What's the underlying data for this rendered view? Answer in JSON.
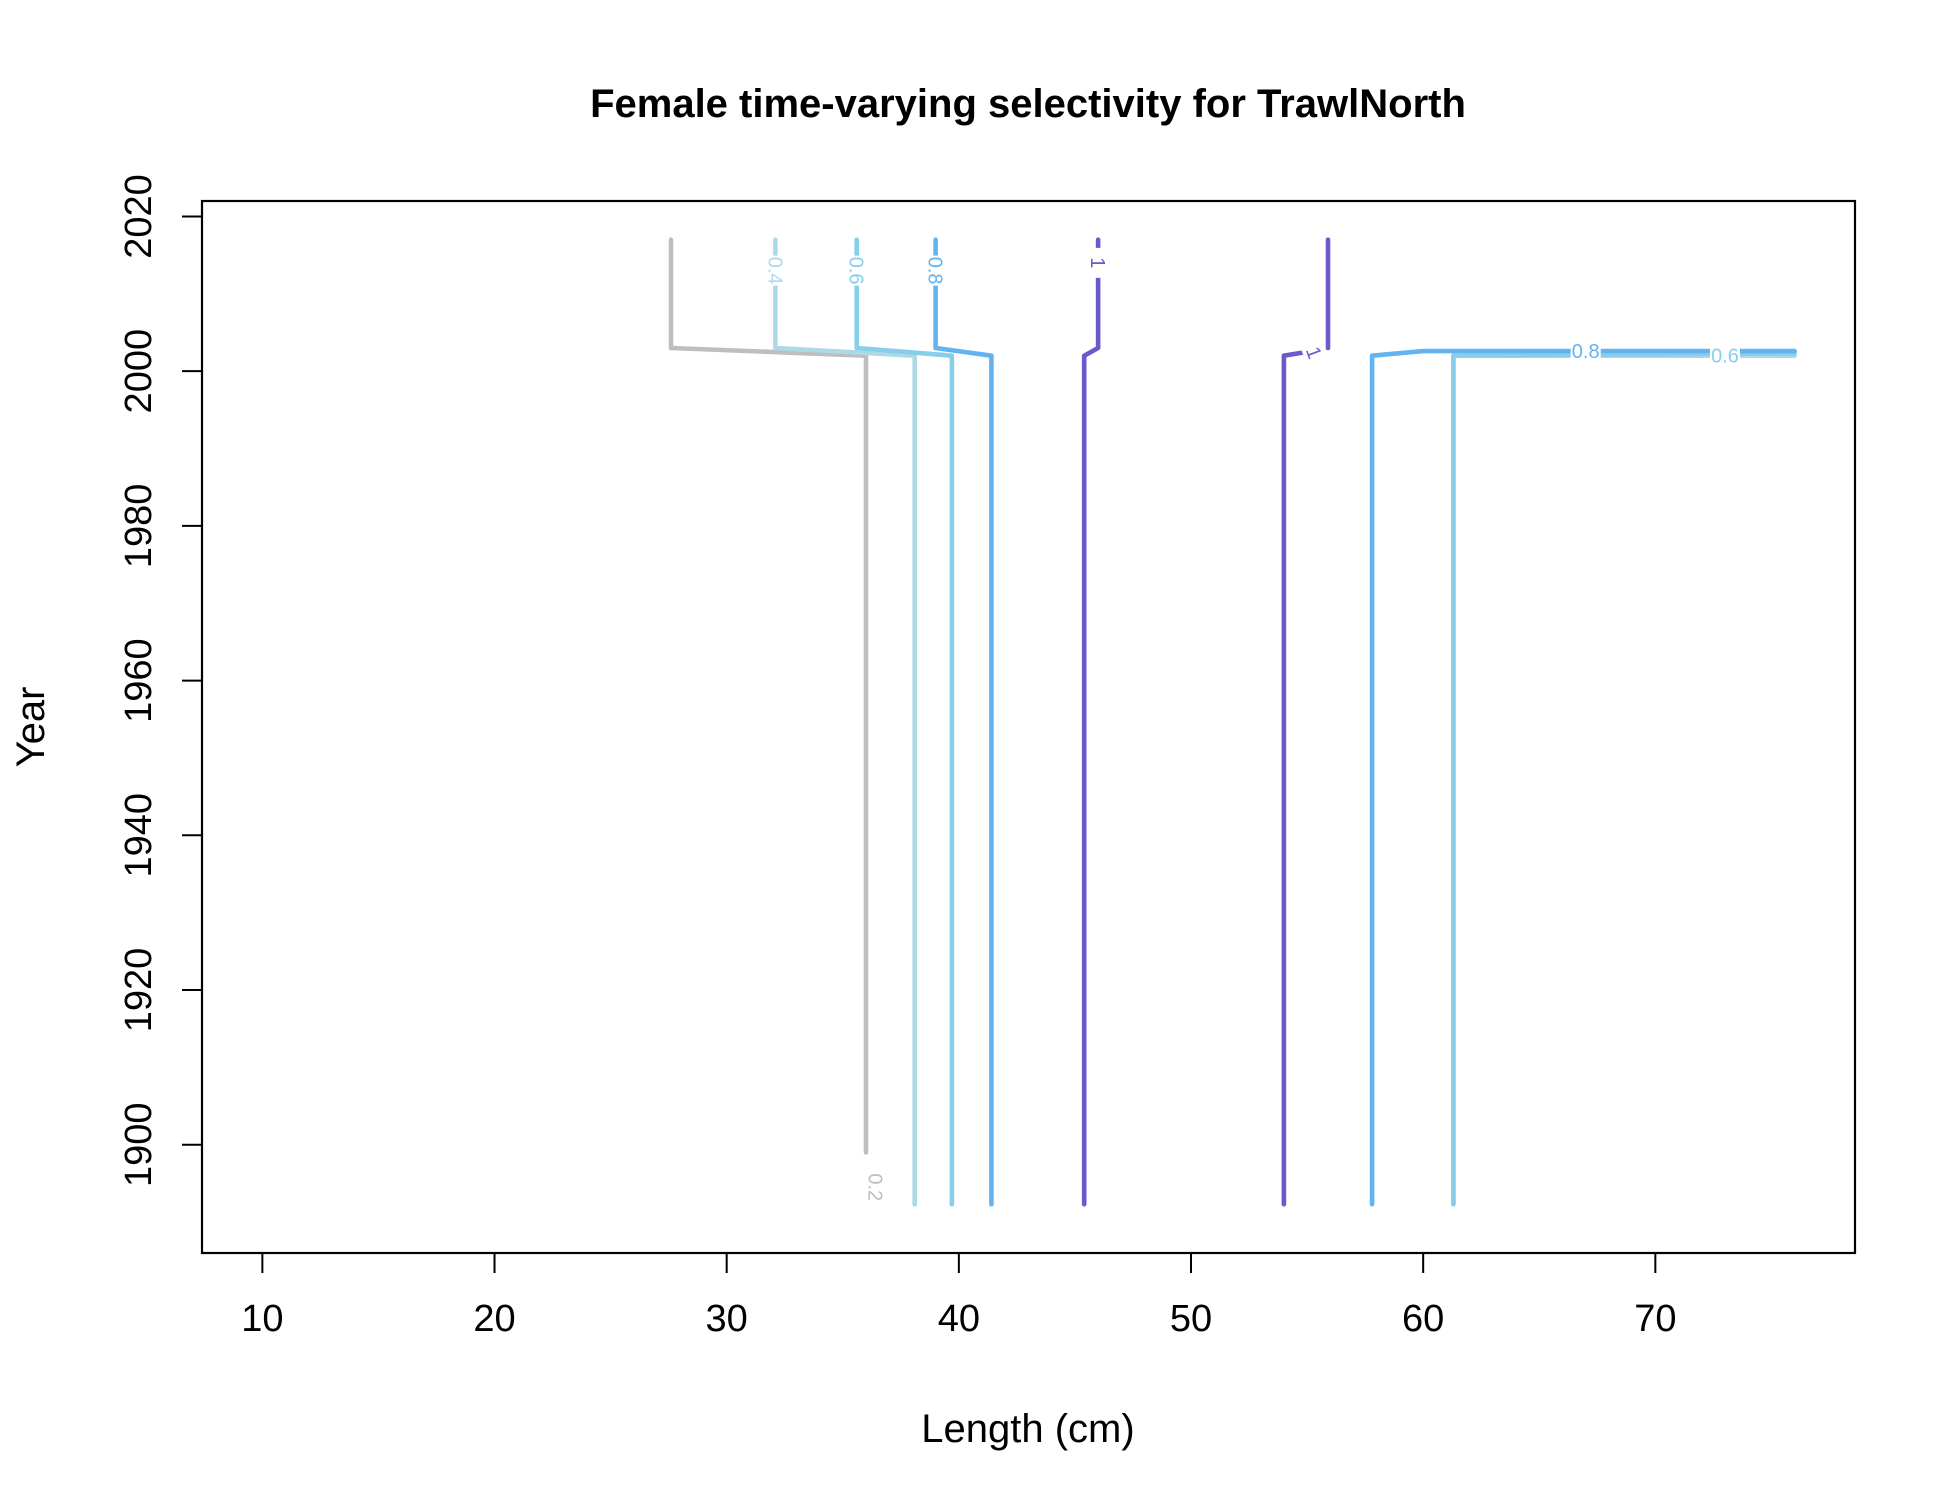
{
  "chart_data": {
    "type": "line",
    "title": "Female time-varying selectivity for TrawlNorth",
    "xlabel": "Length (cm)",
    "ylabel": "Year",
    "xlim": [
      7.4,
      78.6
    ],
    "ylim": [
      1886,
      2022
    ],
    "xticks": [
      10,
      20,
      30,
      40,
      50,
      60,
      70
    ],
    "yticks": [
      1900,
      1920,
      1940,
      1960,
      1980,
      2000,
      2020
    ],
    "grid": false,
    "legend": "none",
    "series": [
      {
        "level": 0.2,
        "label": "0.2",
        "color": "#bebebe",
        "paths": [
          [
            [
              27.6,
              2017
            ],
            [
              27.6,
              2003
            ],
            [
              36.0,
              2002
            ],
            [
              36.0,
              1899
            ]
          ]
        ],
        "label_at": [
          36.4,
          1894.5,
          90
        ]
      },
      {
        "level": 0.4,
        "label": "0.4",
        "color": "#add8e6",
        "paths": [
          [
            [
              32.1,
              2017
            ],
            [
              32.1,
              2003
            ],
            [
              38.1,
              2002
            ],
            [
              38.1,
              1892.3
            ]
          ],
          [
            [
              61.3,
              1892.3
            ],
            [
              61.3,
              2002
            ],
            [
              76.0,
              2002
            ]
          ]
        ],
        "label_at": [
          32.1,
          2013,
          90
        ]
      },
      {
        "level": 0.6,
        "label": "0.6",
        "color": "#87ceeb",
        "paths": [
          [
            [
              35.6,
              2017
            ],
            [
              35.6,
              2003
            ],
            [
              39.7,
              2002
            ],
            [
              39.7,
              1892.3
            ]
          ],
          [
            [
              61.3,
              1892.3
            ],
            [
              61.3,
              2002
            ],
            [
              76.0,
              2002.3
            ]
          ]
        ],
        "label_at": [
          35.6,
          2013,
          90
        ],
        "extra_label_at": [
          73.0,
          2002,
          0
        ]
      },
      {
        "level": 0.8,
        "label": "0.8",
        "color": "#63b3f0",
        "paths": [
          [
            [
              39.0,
              2017
            ],
            [
              39.0,
              2003
            ],
            [
              41.4,
              2002
            ],
            [
              41.4,
              1892.3
            ]
          ],
          [
            [
              57.8,
              1892.3
            ],
            [
              57.8,
              2002
            ],
            [
              60.0,
              2002.6
            ],
            [
              76.0,
              2002.6
            ]
          ]
        ],
        "label_at": [
          39.0,
          2013,
          90
        ],
        "extra_label_at": [
          67.0,
          2002.6,
          0
        ]
      },
      {
        "level": 1,
        "label": "1",
        "color": "#6a5acd",
        "paths": [
          [
            [
              46.0,
              2017
            ],
            [
              46.0,
              2003
            ],
            [
              45.4,
              2002
            ],
            [
              45.4,
              1892.3
            ]
          ],
          [
            [
              54.0,
              1892.3
            ],
            [
              54.0,
              2002
            ],
            [
              54.8,
              2002.4
            ]
          ],
          [
            [
              55.9,
              2003
            ],
            [
              55.9,
              2017
            ]
          ]
        ],
        "label_at": [
          46.0,
          2014,
          90
        ],
        "extra_label_at": [
          55.3,
          2002.4,
          70
        ]
      }
    ]
  }
}
